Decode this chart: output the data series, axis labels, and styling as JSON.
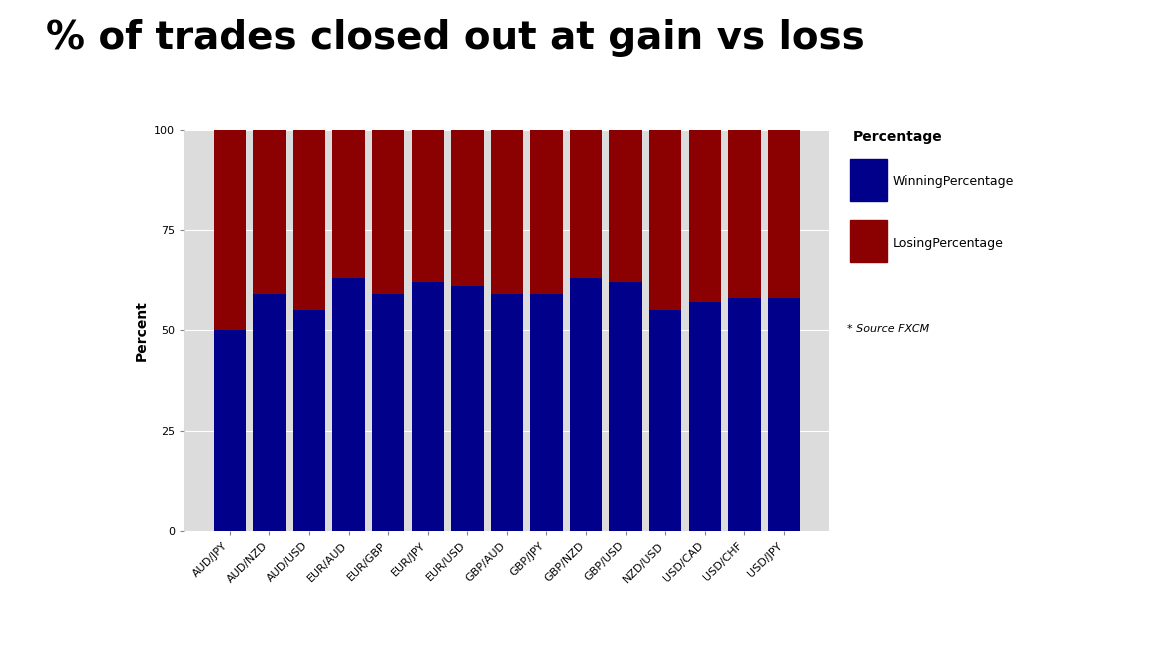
{
  "categories": [
    "AUD/JPY",
    "AUD/NZD",
    "AUD/USD",
    "EUR/AUD",
    "EUR/GBP",
    "EUR/JPY",
    "EUR/USD",
    "GBP/AUD",
    "GBP/JPY",
    "GBP/NZD",
    "GBP/USD",
    "NZD/USD",
    "USD/CAD",
    "USD/CHF",
    "USD/JPY"
  ],
  "winning": [
    50,
    59,
    55,
    63,
    59,
    62,
    61,
    59,
    59,
    63,
    62,
    55,
    57,
    58,
    58
  ],
  "losing": [
    50,
    41,
    45,
    37,
    41,
    38,
    39,
    41,
    41,
    37,
    38,
    45,
    43,
    42,
    42
  ],
  "win_color": "#00008B",
  "lose_color": "#8B0000",
  "bg_color": "#DCDCDC",
  "fig_bg_color": "#FFFFFF",
  "title": "% of trades closed out at gain vs loss",
  "ylabel": "Percent",
  "ylim": [
    0,
    100
  ],
  "yticks": [
    0,
    25,
    50,
    75,
    100
  ],
  "legend_title": "Percentage",
  "legend_win": "WinningPercentage",
  "legend_lose": "LosingPercentage",
  "source_text": "* Source FXCM",
  "title_fontsize": 28,
  "axis_fontsize": 10,
  "tick_fontsize": 8,
  "legend_fontsize": 9,
  "bar_width": 0.82
}
